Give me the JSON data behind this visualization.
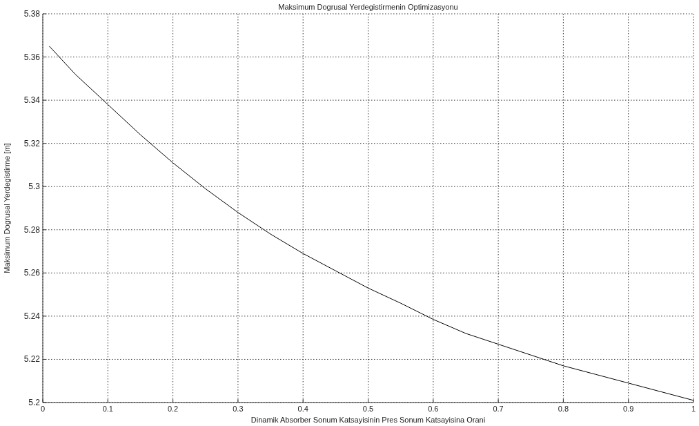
{
  "chart_data": {
    "type": "line",
    "title": "Maksimum Dogrusal Yerdegistirmenin Optimizasyonu",
    "xlabel": "Dinamik Absorber Sonum Katsayisinin Pres Sonum Katsayisina Orani",
    "ylabel": "Maksimum Dogrusal Yerdegistirme [m]",
    "x": [
      0.01,
      0.05,
      0.1,
      0.15,
      0.2,
      0.25,
      0.3,
      0.34,
      0.35,
      0.4,
      0.45,
      0.5,
      0.55,
      0.59,
      0.6,
      0.65,
      0.7,
      0.75,
      0.77,
      0.8,
      0.85,
      0.9,
      0.95,
      1.0
    ],
    "series": [
      {
        "color": "#000000",
        "values": [
          5.365,
          5.352,
          5.338,
          5.324,
          5.311,
          5.299,
          5.288,
          5.28,
          5.278,
          5.269,
          5.261,
          5.253,
          5.246,
          5.24,
          5.2385,
          5.232,
          5.227,
          5.222,
          5.22,
          5.217,
          5.213,
          5.209,
          5.205,
          5.201
        ]
      }
    ],
    "xlim": [
      0,
      1
    ],
    "xticks": [
      0,
      0.1,
      0.2,
      0.3,
      0.4,
      0.5,
      0.6,
      0.7,
      0.8,
      0.9,
      1
    ],
    "ylim": [
      5.2,
      5.38
    ],
    "yticks": [
      5.2,
      5.22,
      5.24,
      5.26,
      5.28,
      5.3,
      5.32,
      5.34,
      5.36,
      5.38
    ],
    "grid": true,
    "marker": "none",
    "line_style": "solid"
  }
}
